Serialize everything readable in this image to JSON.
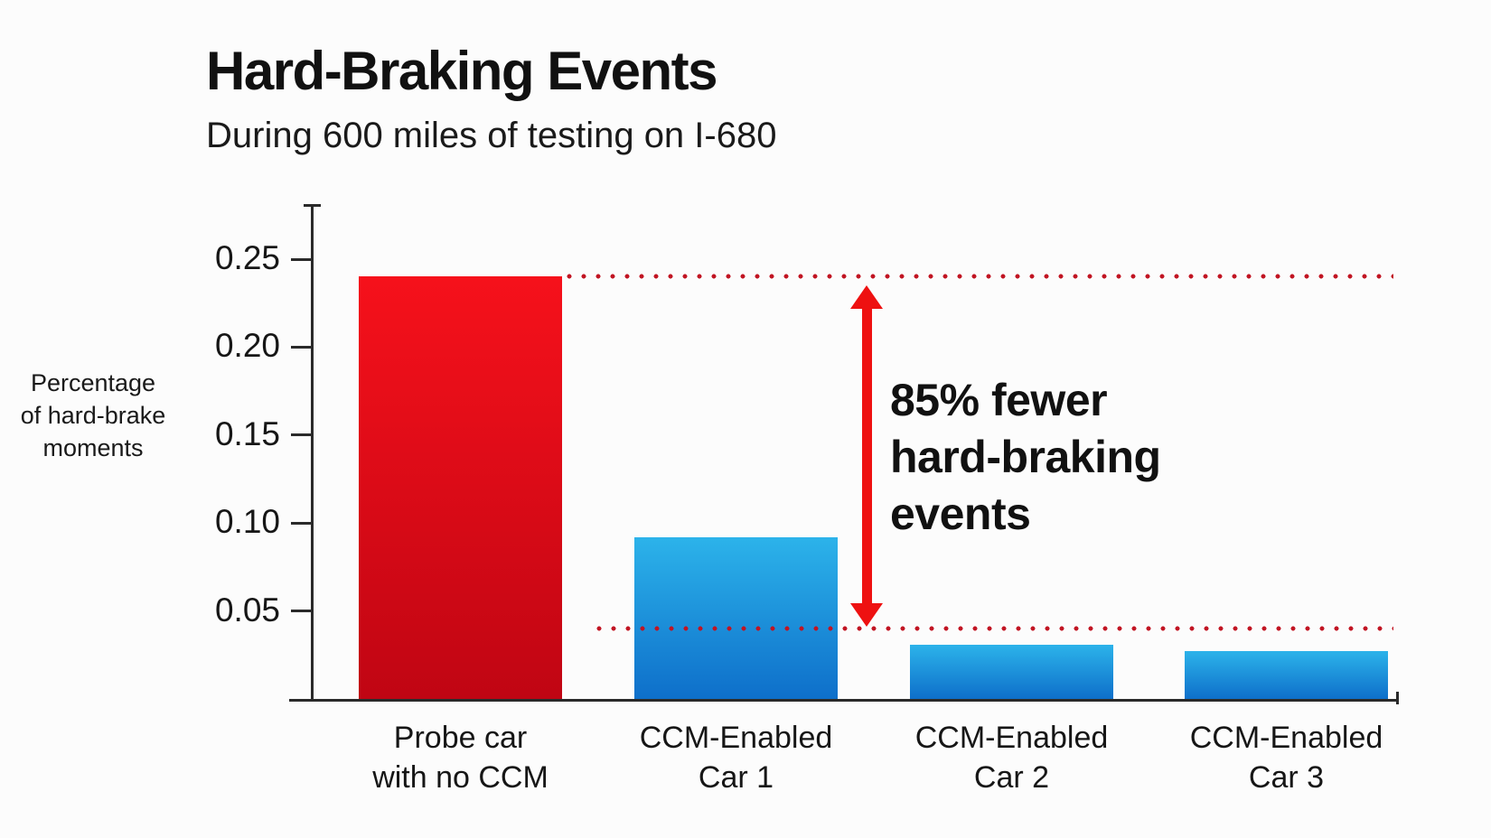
{
  "header": {
    "title": "Hard-Braking Events",
    "subtitle": "During 600 miles of testing on I-680"
  },
  "chart_data": {
    "type": "bar",
    "title": "Hard-Braking Events",
    "subtitle": "During 600 miles of testing on I-680",
    "ylabel": "Percentage of hard-brake moments",
    "ylabel_lines": [
      "Percentage",
      "of hard-brake",
      "moments"
    ],
    "categories": [
      [
        "Probe car",
        "with no CCM"
      ],
      [
        "CCM-Enabled",
        "Car 1"
      ],
      [
        "CCM-Enabled",
        "Car 2"
      ],
      [
        "CCM-Enabled",
        "Car 3"
      ]
    ],
    "values": [
      0.24,
      0.092,
      0.031,
      0.027
    ],
    "yticks": [
      0.05,
      0.1,
      0.15,
      0.2,
      0.25
    ],
    "ytick_labels": [
      "0.05",
      "0.10",
      "0.15",
      "0.20",
      "0.25"
    ],
    "ylim": [
      0,
      0.282
    ],
    "grid": false,
    "legend": "none",
    "bar_gradients": [
      {
        "top": "#f6111b",
        "bottom": "#c00513"
      },
      {
        "top": "#2cb3ea",
        "bottom": "#0e6fca"
      },
      {
        "top": "#2cb3ea",
        "bottom": "#0e6fca"
      },
      {
        "top": "#2cb3ea",
        "bottom": "#0e6fca"
      }
    ],
    "reference_lines": [
      {
        "value": 0.24,
        "style": "dotted"
      },
      {
        "value": 0.04,
        "style": "dotted"
      }
    ],
    "annotation": {
      "lines": [
        "85% fewer",
        "hard-braking",
        "events"
      ],
      "text": "85% fewer hard-braking events"
    },
    "colors": {
      "dotted_line": "#c11422",
      "arrow": "#ee1111",
      "axis": "#2a2a2a",
      "text": "#141414",
      "background": "#fcfcfc"
    }
  }
}
